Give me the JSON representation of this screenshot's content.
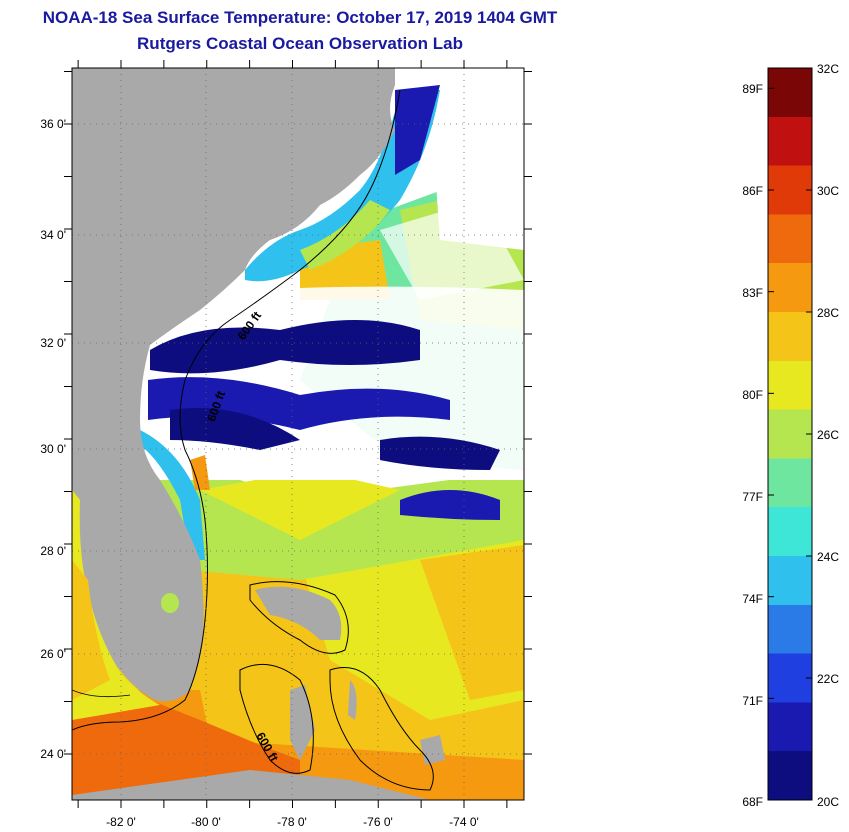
{
  "header": {
    "title": "NOAA-18 Sea Surface Temperature:  October 17, 2019 1404 GMT",
    "subtitle": "Rutgers Coastal Ocean Observation Lab"
  },
  "map": {
    "lat_labels": [
      "36 0'",
      "34 0'",
      "32 0'",
      "30 0'",
      "28 0'",
      "26 0'",
      "24 0'"
    ],
    "lon_labels": [
      "-82 0'",
      "-80 0'",
      "-78 0'",
      "-76 0'",
      "-74 0'"
    ],
    "contour_labels": [
      "600 ft",
      "600 ft",
      "600 ft"
    ],
    "colors": {
      "land": "#a9a9a9",
      "cloud": "#ffffff",
      "contour": "#000000"
    }
  },
  "colorbar": {
    "fahrenheit_labels": [
      "89F",
      "86F",
      "83F",
      "80F",
      "77F",
      "74F",
      "71F",
      "68F"
    ],
    "celsius_labels": [
      "32C",
      "30C",
      "28C",
      "26C",
      "24C",
      "22C",
      "20C"
    ],
    "range_c": [
      20,
      32
    ],
    "colors": [
      "#0d0d80",
      "#1a1ab0",
      "#1f3fe0",
      "#2a7ae8",
      "#2fc0ee",
      "#3ee6d8",
      "#6fe6a0",
      "#b5e650",
      "#e8e820",
      "#f5c418",
      "#f59a10",
      "#ee6a0c",
      "#e03a08",
      "#c01010",
      "#7a0606"
    ]
  }
}
